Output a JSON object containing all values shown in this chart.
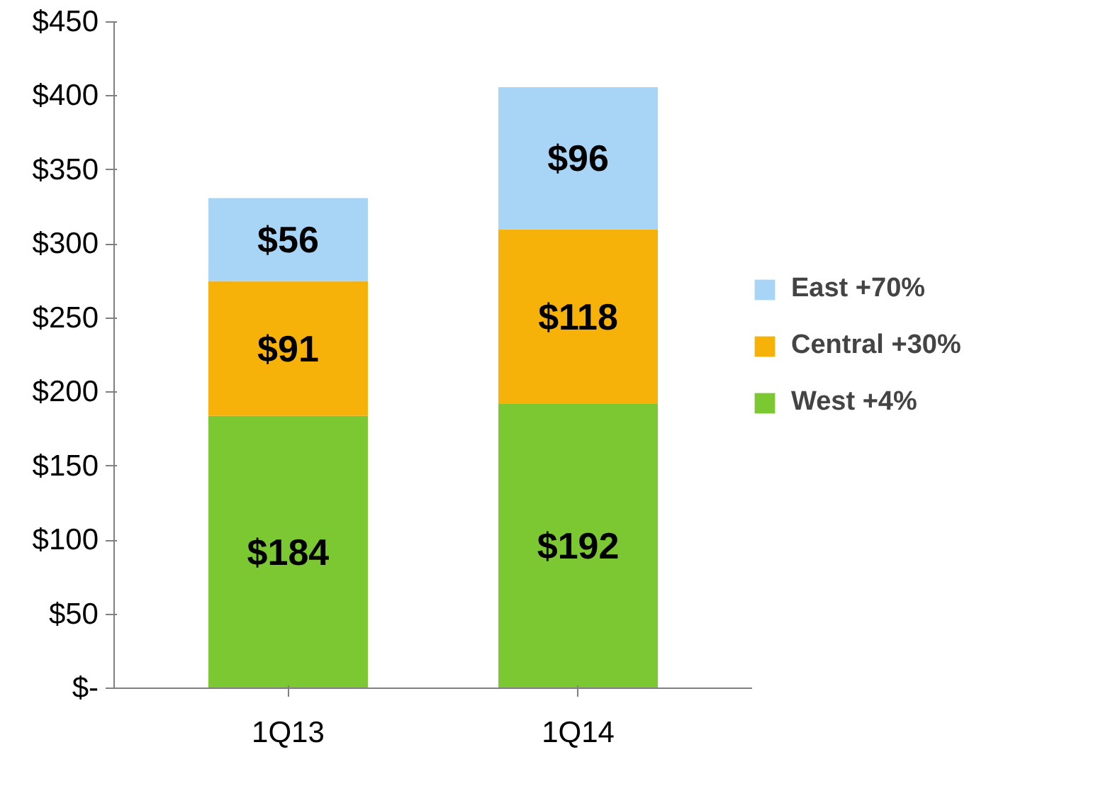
{
  "chart_data": {
    "type": "bar",
    "stacked": true,
    "categories": [
      "1Q13",
      "1Q14"
    ],
    "series": [
      {
        "name": "West +4%",
        "color": "#7cc832",
        "values": [
          184,
          192
        ],
        "value_labels": [
          "$184",
          "$192"
        ]
      },
      {
        "name": "Central +30%",
        "color": "#f7b20a",
        "values": [
          91,
          118
        ],
        "value_labels": [
          "$91",
          "$118"
        ]
      },
      {
        "name": "East +70%",
        "color": "#a8d4f5",
        "values": [
          56,
          96
        ],
        "value_labels": [
          "$56",
          "$96"
        ]
      }
    ],
    "ylim": [
      0,
      450
    ],
    "yticks": [
      {
        "value": 0,
        "label": "$-"
      },
      {
        "value": 50,
        "label": "$50"
      },
      {
        "value": 100,
        "label": "$100"
      },
      {
        "value": 150,
        "label": "$150"
      },
      {
        "value": 200,
        "label": "$200"
      },
      {
        "value": 250,
        "label": "$250"
      },
      {
        "value": 300,
        "label": "$300"
      },
      {
        "value": 350,
        "label": "$350"
      },
      {
        "value": 400,
        "label": "$400"
      },
      {
        "value": 450,
        "label": "$450"
      }
    ],
    "grid": false,
    "legend": "right"
  }
}
